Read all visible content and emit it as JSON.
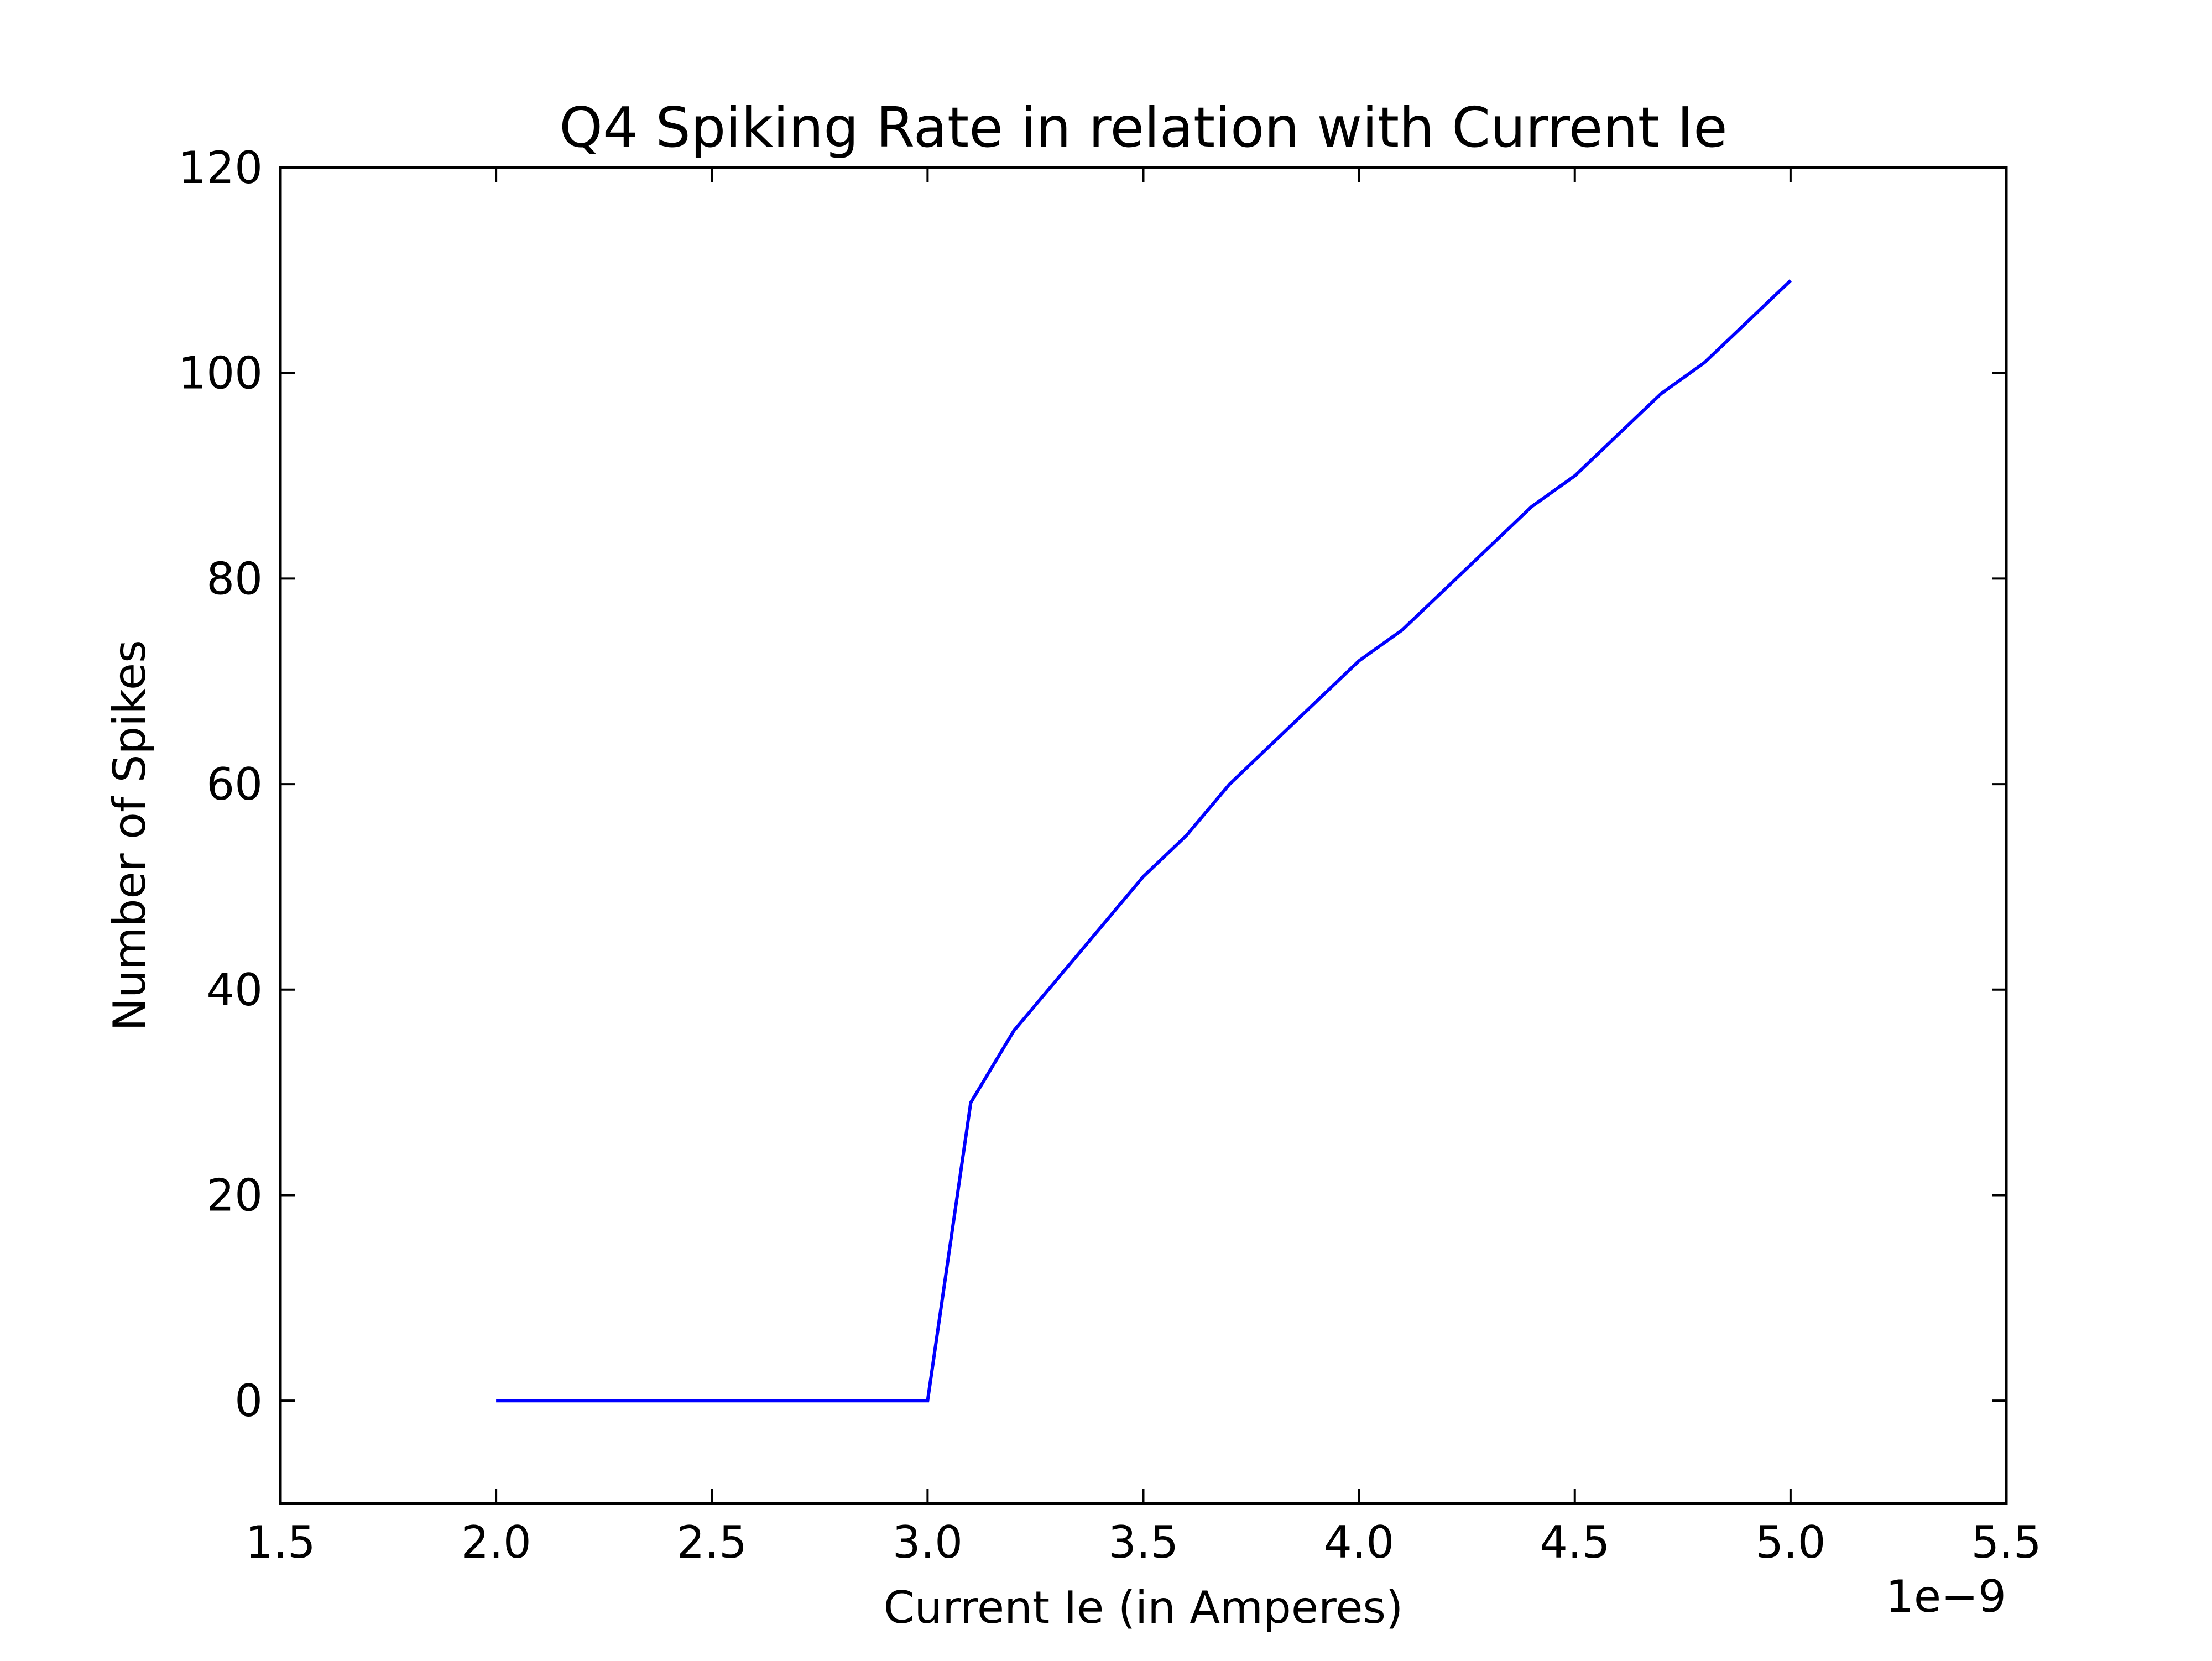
{
  "chart_data": {
    "type": "line",
    "title": "Q4 Spiking Rate in relation with Current Ie",
    "xlabel": "Current Ie (in Amperes)",
    "ylabel": "Number of Spikes",
    "x_offset_label": "1e−9",
    "xlim": [
      1.5e-09,
      5.5e-09
    ],
    "ylim": [
      -10,
      120
    ],
    "x_ticks": [
      1.5e-09,
      2e-09,
      2.5e-09,
      3e-09,
      3.5e-09,
      4e-09,
      4.5e-09,
      5e-09,
      5.5e-09
    ],
    "x_tick_labels": [
      "1.5",
      "2.0",
      "2.5",
      "3.0",
      "3.5",
      "4.0",
      "4.5",
      "5.0",
      "5.5"
    ],
    "y_ticks": [
      0,
      20,
      40,
      60,
      80,
      100,
      120
    ],
    "y_tick_labels": [
      "0",
      "20",
      "40",
      "60",
      "80",
      "100",
      "120"
    ],
    "grid": false,
    "legend": "none",
    "series": [
      {
        "color": "#0000ff",
        "x": [
          2e-09,
          2.1e-09,
          2.2e-09,
          2.3e-09,
          2.4e-09,
          2.5e-09,
          2.6e-09,
          2.7e-09,
          2.8e-09,
          2.9e-09,
          3e-09,
          3.1e-09,
          3.2e-09,
          3.3e-09,
          3.4e-09,
          3.5e-09,
          3.6e-09,
          3.7e-09,
          3.8e-09,
          3.9e-09,
          4e-09,
          4.1e-09,
          4.2e-09,
          4.3e-09,
          4.4e-09,
          4.5e-09,
          4.6e-09,
          4.7e-09,
          4.8e-09,
          4.9e-09,
          5e-09
        ],
        "y": [
          0,
          0,
          0,
          0,
          0,
          0,
          0,
          0,
          0,
          0,
          0,
          29,
          36,
          41,
          46,
          51,
          55,
          60,
          64,
          68,
          72,
          75,
          79,
          83,
          87,
          90,
          94,
          98,
          101,
          105,
          109
        ]
      }
    ]
  }
}
